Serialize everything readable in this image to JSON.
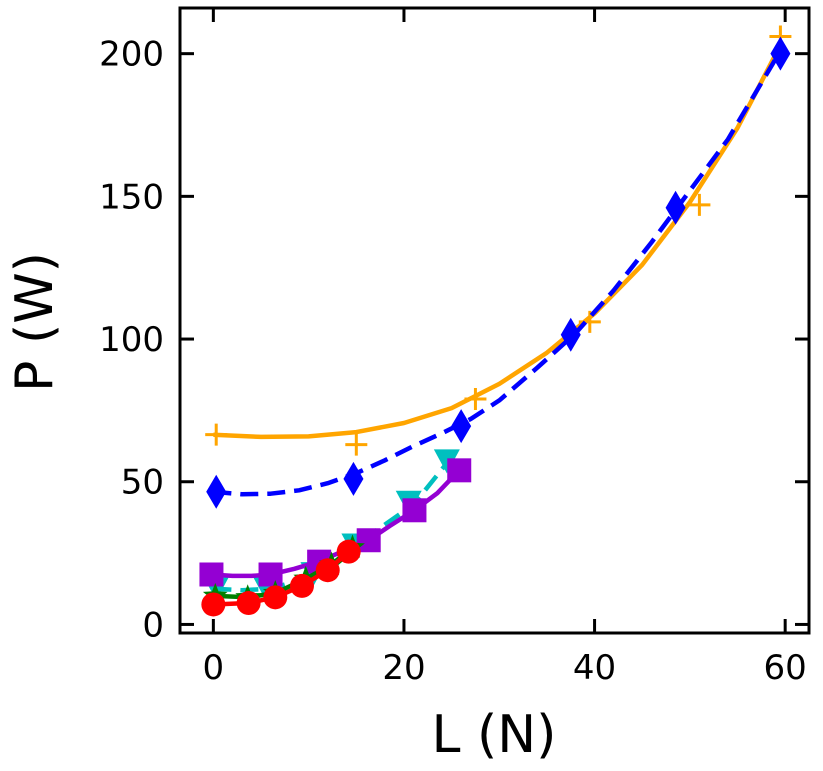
{
  "chart_data": {
    "type": "line",
    "title": "",
    "xlabel": "L (N)",
    "ylabel": "P (W)",
    "xlim": [
      -3.5,
      62.5
    ],
    "ylim": [
      -3,
      216
    ],
    "xticks": [
      0,
      20,
      40,
      60
    ],
    "yticks": [
      0,
      50,
      100,
      150,
      200
    ],
    "grid": false,
    "legend": "none",
    "series": [
      {
        "name": "orange-plus",
        "color": "#ffa500",
        "marker": "plus",
        "line_style": "solid",
        "points": [
          [
            0.3,
            66.5
          ],
          [
            15,
            63
          ],
          [
            27.5,
            79
          ],
          [
            39.5,
            106
          ],
          [
            51,
            147
          ],
          [
            59.5,
            206
          ]
        ],
        "fit": [
          [
            0,
            66.5
          ],
          [
            5,
            65.7
          ],
          [
            10,
            65.9
          ],
          [
            15,
            67.4
          ],
          [
            20,
            70.6
          ],
          [
            25,
            75.8
          ],
          [
            30,
            84.3
          ],
          [
            35,
            95.2
          ],
          [
            40,
            109
          ],
          [
            45,
            126
          ],
          [
            50,
            148
          ],
          [
            55,
            174
          ],
          [
            59.5,
            203
          ]
        ]
      },
      {
        "name": "blue-diamond",
        "color": "#0000ff",
        "marker": "diamond",
        "line_style": "dashed",
        "points": [
          [
            0.3,
            46.5
          ],
          [
            14.7,
            51
          ],
          [
            26,
            69.5
          ],
          [
            37.5,
            101.5
          ],
          [
            48.5,
            146
          ],
          [
            59.5,
            200
          ]
        ],
        "fit": [
          [
            0,
            46.5
          ],
          [
            3,
            45.6
          ],
          [
            6,
            45.8
          ],
          [
            9,
            47
          ],
          [
            12,
            49.5
          ],
          [
            15,
            53
          ],
          [
            18,
            57.5
          ],
          [
            21,
            62.5
          ],
          [
            24,
            67
          ],
          [
            27,
            72
          ],
          [
            30,
            78.5
          ],
          [
            34,
            90
          ],
          [
            38,
            102
          ],
          [
            42,
            117
          ],
          [
            46,
            134
          ],
          [
            50,
            152
          ],
          [
            54,
            170
          ],
          [
            59.5,
            201
          ]
        ]
      },
      {
        "name": "cyan-triangle",
        "color": "#00bfbf",
        "marker": "triangle-down",
        "line_style": "dashed",
        "points": [
          [
            0.3,
            13
          ],
          [
            5.5,
            13
          ],
          [
            10.5,
            18
          ],
          [
            14.8,
            28
          ],
          [
            20.5,
            43
          ],
          [
            24.5,
            57.5
          ]
        ],
        "fit": [
          [
            0,
            12.5
          ],
          [
            3,
            12
          ],
          [
            6,
            12.5
          ],
          [
            9,
            15.5
          ],
          [
            12,
            21
          ],
          [
            15,
            28
          ],
          [
            18,
            35
          ],
          [
            21,
            42
          ],
          [
            24.5,
            56.5
          ]
        ]
      },
      {
        "name": "purple-square",
        "color": "#9400d3",
        "marker": "square",
        "line_style": "solid",
        "points": [
          [
            -0.2,
            17.5
          ],
          [
            6,
            17.5
          ],
          [
            11.1,
            22
          ],
          [
            16.3,
            29.5
          ],
          [
            21.1,
            40
          ],
          [
            25.8,
            54
          ]
        ],
        "fit": [
          [
            -0.2,
            17.5
          ],
          [
            2,
            17
          ],
          [
            4,
            17
          ],
          [
            6,
            17.5
          ],
          [
            8.5,
            19.5
          ],
          [
            11,
            22
          ],
          [
            13.5,
            25.5
          ],
          [
            16.3,
            29.5
          ],
          [
            18.5,
            34.5
          ],
          [
            21.1,
            40
          ],
          [
            23.5,
            46
          ],
          [
            25.8,
            54
          ]
        ]
      },
      {
        "name": "green-star",
        "color": "#008000",
        "marker": "star",
        "line_style": "solid",
        "points": [
          [
            0.2,
            10
          ],
          [
            3.6,
            9.5
          ],
          [
            6.5,
            11
          ],
          [
            9.7,
            16
          ],
          [
            12.4,
            21
          ],
          [
            14.6,
            27
          ]
        ],
        "fit": [
          [
            0.2,
            10
          ],
          [
            3.6,
            9.5
          ],
          [
            6.5,
            11
          ],
          [
            9.7,
            16
          ],
          [
            12.4,
            21
          ],
          [
            14.6,
            27
          ]
        ]
      },
      {
        "name": "red-circle",
        "color": "#ff0000",
        "marker": "circle",
        "line_style": "solid",
        "points": [
          [
            0,
            7
          ],
          [
            3.7,
            7.5
          ],
          [
            6.5,
            9.5
          ],
          [
            9.3,
            13.5
          ],
          [
            12,
            19
          ],
          [
            14.2,
            25.5
          ]
        ],
        "fit": [
          [
            0,
            7
          ],
          [
            3.7,
            7.5
          ],
          [
            6.5,
            9.5
          ],
          [
            9.3,
            13.5
          ],
          [
            12,
            19
          ],
          [
            14.2,
            25.5
          ]
        ]
      }
    ]
  }
}
